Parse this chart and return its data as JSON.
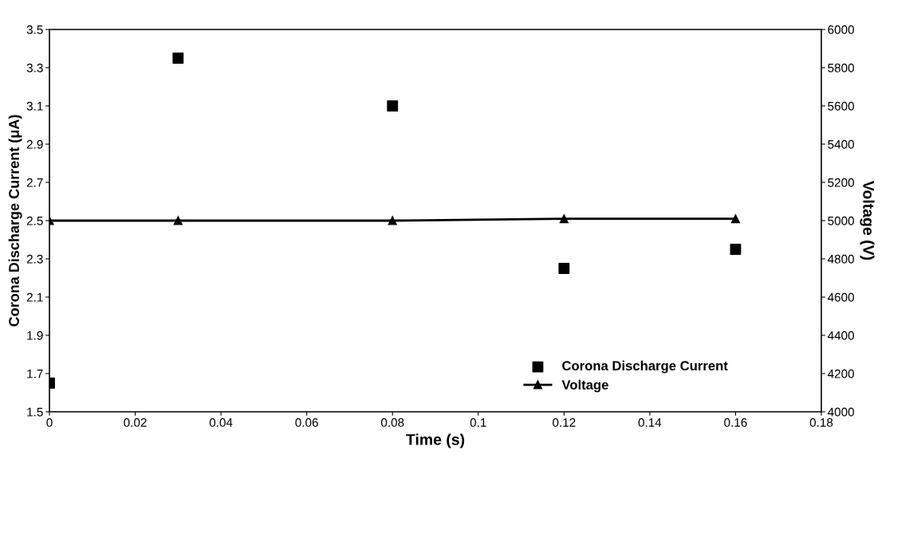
{
  "chart_data": {
    "type": "scatter",
    "xlabel": "Time (s)",
    "ylabel": "Corona Discharge Current (μA)",
    "y2label": "Voltage (V)",
    "x": [
      0,
      0.03,
      0.08,
      0.12,
      0.16
    ],
    "series": [
      {
        "name": "Corona Discharge Current",
        "color": "#000000",
        "marker": "square",
        "values": [
          1.65,
          3.35,
          3.1,
          2.25,
          2.35
        ]
      },
      {
        "name": "Voltage",
        "type": "line",
        "axis": "y2",
        "color": "#000000",
        "marker": "triangle",
        "line_style": "solid",
        "values": [
          5000,
          5000,
          5000,
          5010,
          5010
        ]
      }
    ],
    "xlim": [
      0,
      0.18
    ],
    "xticks": [
      0,
      0.02,
      0.04,
      0.06,
      0.08,
      0.1,
      0.12,
      0.14,
      0.16,
      0.18
    ],
    "ylim": [
      1.5,
      3.5
    ],
    "yticks": [
      1.5,
      1.7,
      1.9,
      2.1,
      2.3,
      2.5,
      2.7,
      2.9,
      3.1,
      3.3,
      3.5
    ],
    "y2lim": [
      4000,
      6000
    ],
    "y2ticks": [
      4000,
      4200,
      4400,
      4600,
      4800,
      5000,
      5200,
      5400,
      5600,
      5800,
      6000
    ],
    "grid": false,
    "legend": "bottom right"
  }
}
